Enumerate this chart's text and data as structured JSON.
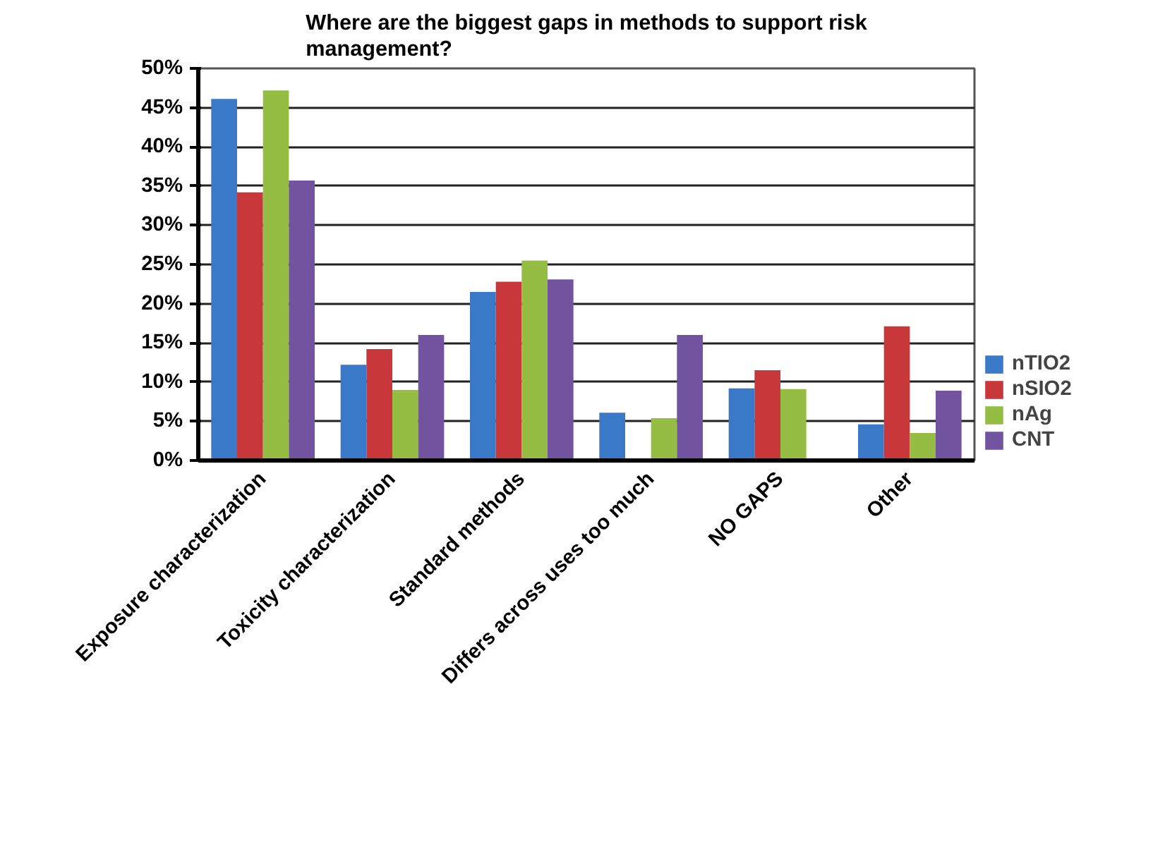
{
  "chart_data": {
    "type": "bar",
    "title": "Where are the biggest gaps in methods to support risk management?",
    "categories": [
      "Exposure characterization",
      "Toxicity characterization",
      "Standard methods",
      "Differs across uses too much",
      "NO GAPS",
      "Other"
    ],
    "series": [
      {
        "name": "nTIO2",
        "color": "#3a78c8",
        "values": [
          46.1,
          12.2,
          21.5,
          6.1,
          9.2,
          4.6
        ]
      },
      {
        "name": "nSIO2",
        "color": "#c8373a",
        "values": [
          34.2,
          14.2,
          22.8,
          0,
          11.5,
          17.1
        ]
      },
      {
        "name": "nAg",
        "color": "#95bd44",
        "values": [
          47.2,
          9.0,
          25.5,
          5.4,
          9.1,
          3.5
        ]
      },
      {
        "name": "CNT",
        "color": "#7253a0",
        "values": [
          35.7,
          16.0,
          23.1,
          16.0,
          0,
          8.9
        ]
      }
    ],
    "ylim": [
      0,
      50
    ],
    "yticks": [
      {
        "value": 0,
        "label": "0%"
      },
      {
        "value": 5,
        "label": "5%"
      },
      {
        "value": 10,
        "label": "10%"
      },
      {
        "value": 15,
        "label": "15%"
      },
      {
        "value": 20,
        "label": "20%"
      },
      {
        "value": 25,
        "label": "25%"
      },
      {
        "value": 30,
        "label": "30%"
      },
      {
        "value": 35,
        "label": "35%"
      },
      {
        "value": 40,
        "label": "40%"
      },
      {
        "value": 45,
        "label": "45%"
      },
      {
        "value": 50,
        "label": "50%"
      }
    ],
    "grid": "y",
    "legend": "right"
  }
}
